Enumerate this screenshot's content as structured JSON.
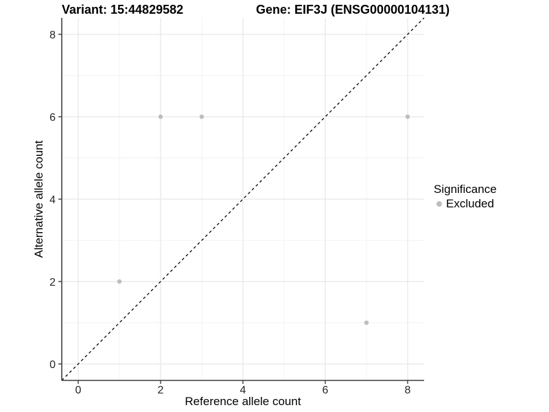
{
  "title": {
    "variant": "Variant: 15:44829582",
    "gene": "Gene: EIF3J (ENSG00000104131)"
  },
  "chart_data": {
    "type": "scatter",
    "title": "Variant: 15:44829582    Gene: EIF3J (ENSG00000104131)",
    "xlabel": "Reference allele count",
    "ylabel": "Alternative allele count",
    "xlim": [
      -0.4,
      8.4
    ],
    "ylim": [
      -0.4,
      8.4
    ],
    "x_ticks": [
      0,
      2,
      4,
      6,
      8
    ],
    "y_ticks": [
      0,
      2,
      4,
      6,
      8
    ],
    "x_minor_ticks": [
      1,
      3,
      5,
      7
    ],
    "y_minor_ticks": [
      1,
      3,
      5,
      7
    ],
    "grid": true,
    "series": [
      {
        "name": "Excluded",
        "color": "#bdbdbd",
        "points": [
          [
            1,
            2
          ],
          [
            2,
            6
          ],
          [
            3,
            6
          ],
          [
            7,
            1
          ],
          [
            8,
            6
          ]
        ]
      }
    ],
    "reference_line": {
      "type": "identity y=x",
      "style": "dashed",
      "color": "#000000"
    },
    "legend": {
      "title": "Significance",
      "position": "right",
      "items": [
        {
          "label": "Excluded",
          "color": "#bdbdbd"
        }
      ]
    }
  },
  "colors": {
    "background": "#ffffff",
    "point": "#bdbdbd",
    "axis_line": "#3c3c3c",
    "grid_major": "#e6e6e6",
    "grid_minor": "#f2f2f2",
    "tick_label": "#262626",
    "reference_line": "#000000"
  }
}
